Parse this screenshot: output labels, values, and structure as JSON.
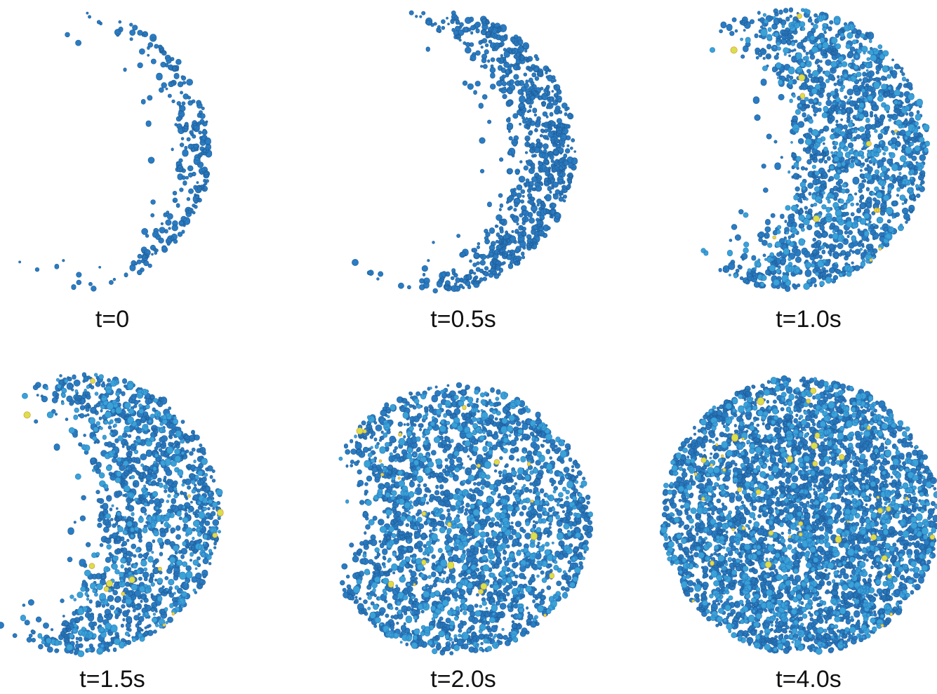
{
  "panels": [
    {
      "label": "t=0"
    },
    {
      "label": "t=0.5s"
    },
    {
      "label": "t=1.0s"
    },
    {
      "label": "t=1.5s"
    },
    {
      "label": "t=2.0s"
    },
    {
      "label": "t=4.0s"
    }
  ]
}
